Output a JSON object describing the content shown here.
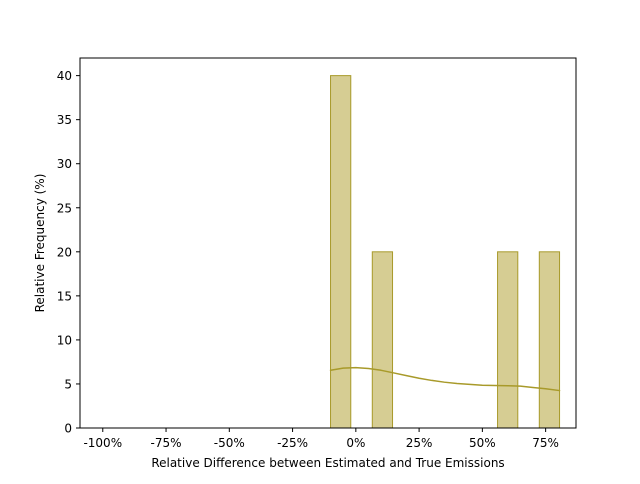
{
  "chart_data": {
    "type": "bar",
    "subtype": "histogram",
    "title": "",
    "xlabel": "Relative Difference between Estimated and True Emissions",
    "ylabel": "Relative Frequency (%)",
    "xlim": [
      -1.09,
      0.87
    ],
    "ylim": [
      0,
      42
    ],
    "x_ticks": [
      -1.0,
      -0.75,
      -0.5,
      -0.25,
      0.0,
      0.25,
      0.5,
      0.75
    ],
    "x_tick_labels": [
      "-100%",
      "-75%",
      "-50%",
      "-25%",
      "0%",
      "25%",
      "50%",
      "75%"
    ],
    "y_ticks": [
      0,
      5,
      10,
      15,
      20,
      25,
      30,
      35,
      40
    ],
    "y_tick_labels": [
      "0",
      "5",
      "10",
      "15",
      "20",
      "25",
      "30",
      "35",
      "40"
    ],
    "bars": [
      {
        "x0": -0.1,
        "x1": -0.02,
        "value": 40
      },
      {
        "x0": 0.065,
        "x1": 0.145,
        "value": 20
      },
      {
        "x0": 0.56,
        "x1": 0.64,
        "value": 20
      },
      {
        "x0": 0.725,
        "x1": 0.805,
        "value": 20
      }
    ],
    "density_curve": {
      "x": [
        -0.1,
        -0.05,
        0.0,
        0.05,
        0.1,
        0.15,
        0.2,
        0.25,
        0.3,
        0.35,
        0.4,
        0.45,
        0.5,
        0.55,
        0.6,
        0.65,
        0.7,
        0.75,
        0.805
      ],
      "y": [
        6.55,
        6.8,
        6.85,
        6.75,
        6.55,
        6.25,
        5.95,
        5.65,
        5.4,
        5.2,
        5.05,
        4.95,
        4.85,
        4.82,
        4.8,
        4.75,
        4.6,
        4.45,
        4.25
      ]
    },
    "grid": false,
    "colors": {
      "bar_fill": "#d6cd93",
      "bar_edge": "#a89a2a",
      "curve": "#a89a2a",
      "axes": "#000000"
    }
  }
}
